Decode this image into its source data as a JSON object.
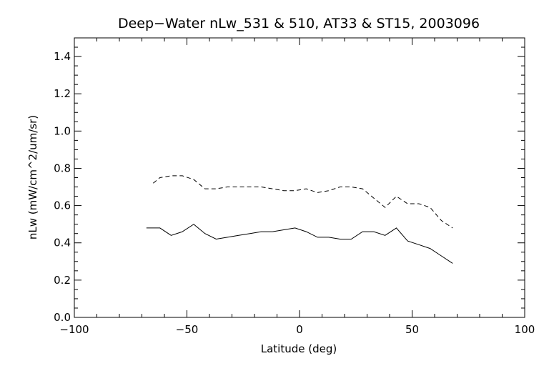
{
  "chart_data": {
    "type": "line",
    "title": "Deep−Water nLw_531 & 510, AT33 & ST15, 2003096",
    "xlabel": "Latitude (deg)",
    "ylabel": "nLw (mW/cm^2/um/sr)",
    "xlim": [
      -100,
      100
    ],
    "ylim": [
      0.0,
      1.5
    ],
    "xticks": [
      -100,
      -50,
      0,
      50,
      100
    ],
    "xtick_labels": [
      "−100",
      "−50",
      "0",
      "50",
      "100"
    ],
    "yticks": [
      0.0,
      0.2,
      0.4,
      0.6,
      0.8,
      1.0,
      1.2,
      1.4
    ],
    "ytick_labels": [
      "0.0",
      "0.2",
      "0.4",
      "0.6",
      "0.8",
      "1.0",
      "1.2",
      "1.4"
    ],
    "grid": false,
    "series": [
      {
        "style": "dashed",
        "x": [
          -65,
          -62,
          -57,
          -52,
          -47,
          -42,
          -37,
          -32,
          -27,
          -22,
          -17,
          -12,
          -7,
          -2,
          3,
          8,
          13,
          18,
          23,
          28,
          33,
          38,
          43,
          48,
          53,
          58,
          63,
          68
        ],
        "y": [
          0.72,
          0.75,
          0.76,
          0.76,
          0.74,
          0.69,
          0.69,
          0.7,
          0.7,
          0.7,
          0.7,
          0.69,
          0.68,
          0.68,
          0.69,
          0.67,
          0.68,
          0.7,
          0.7,
          0.69,
          0.64,
          0.59,
          0.65,
          0.61,
          0.61,
          0.59,
          0.52,
          0.48
        ]
      },
      {
        "style": "solid",
        "x": [
          -68,
          -62,
          -57,
          -52,
          -47,
          -42,
          -37,
          -32,
          -27,
          -22,
          -17,
          -12,
          -7,
          -2,
          3,
          8,
          13,
          18,
          23,
          28,
          33,
          38,
          43,
          48,
          53,
          58,
          63,
          68
        ],
        "y": [
          0.48,
          0.48,
          0.44,
          0.46,
          0.5,
          0.45,
          0.42,
          0.43,
          0.44,
          0.45,
          0.46,
          0.46,
          0.47,
          0.48,
          0.46,
          0.43,
          0.43,
          0.42,
          0.42,
          0.46,
          0.46,
          0.44,
          0.48,
          0.41,
          0.39,
          0.37,
          0.33,
          0.29
        ]
      }
    ]
  }
}
